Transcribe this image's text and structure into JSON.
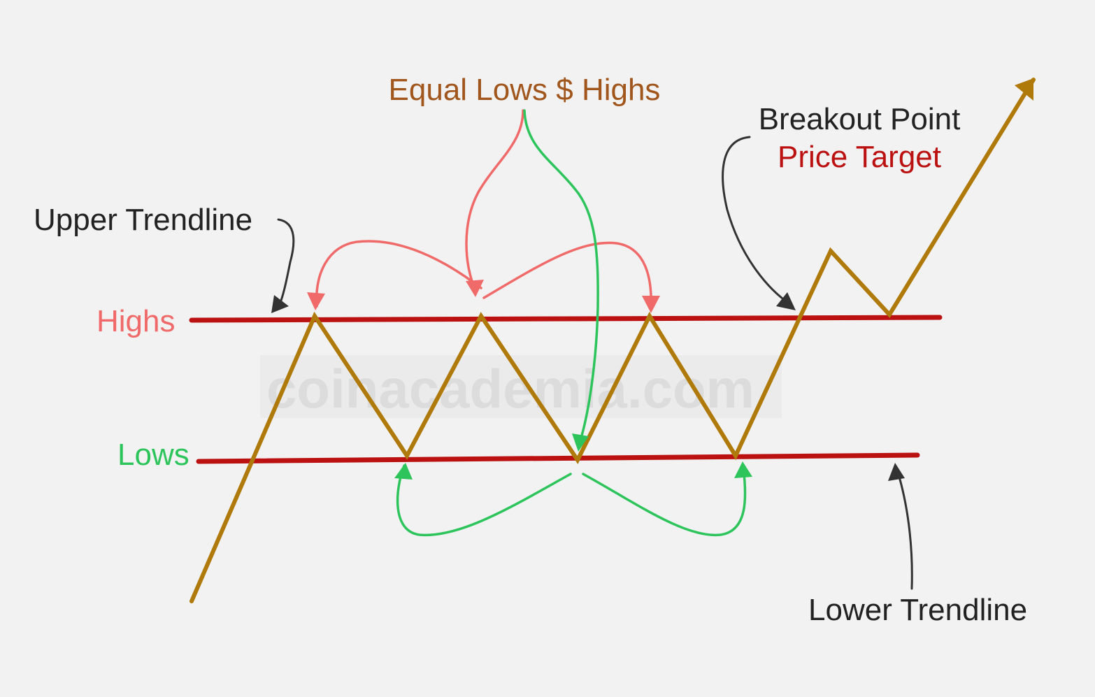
{
  "watermark": "coinacademia.com",
  "labels": {
    "title": "Equal Lows $ Highs",
    "breakout": "Breakout Point",
    "price_target": "Price Target",
    "upper_trendline": "Upper Trendline",
    "highs": "Highs",
    "lows": "Lows",
    "lower_trendline": "Lower Trendline"
  },
  "colors": {
    "background": "#f2f2f2",
    "price_line": "#b07a0a",
    "trendline": "#bb1111",
    "highs_annotation": "#f06a6a",
    "lows_annotation": "#2ec45c",
    "title_text": "#a0561c",
    "price_target_text": "#bb1111",
    "dark_text": "#222222",
    "watermark": "#dcdcdc"
  },
  "icons": {
    "arrow_head": "filled-arrowhead-icon"
  }
}
